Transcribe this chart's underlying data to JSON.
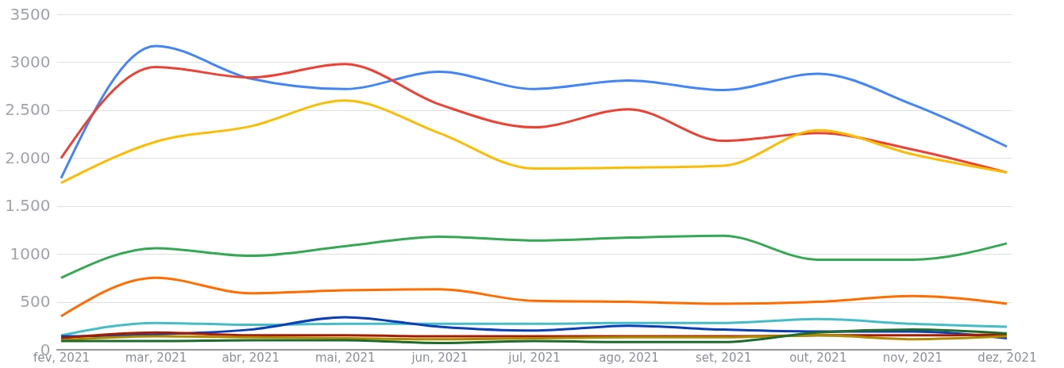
{
  "chart_data": {
    "type": "line",
    "categories": [
      "fev, 2021",
      "mar, 2021",
      "abr, 2021",
      "mai, 2021",
      "jun, 2021",
      "jul, 2021",
      "ago, 2021",
      "set, 2021",
      "out, 2021",
      "nov, 2021",
      "dez, 2021"
    ],
    "ylim": [
      0,
      3500
    ],
    "yticks": [
      0,
      500,
      1000,
      {
        "value": 1500,
        "label": "1.500"
      },
      {
        "value": 2000,
        "label": "2.000"
      },
      {
        "value": 2500,
        "label": "2.500"
      },
      3000,
      3500
    ],
    "grid": "y",
    "legend": false,
    "marker": "none",
    "line_style": "solid",
    "series": [
      {
        "color": "#4285f4",
        "values": [
          1790,
          3170,
          2830,
          2720,
          2900,
          2720,
          2810,
          2710,
          2880,
          2560,
          2120
        ]
      },
      {
        "color": "#ea4335",
        "values": [
          2000,
          2950,
          2840,
          2980,
          2560,
          2320,
          2510,
          2180,
          2260,
          2090,
          1850
        ]
      },
      {
        "color": "#fbbc04",
        "values": [
          1740,
          2170,
          2330,
          2600,
          2260,
          1890,
          1900,
          1920,
          2290,
          2040,
          1850
        ]
      },
      {
        "color": "#34a853",
        "values": [
          750,
          1060,
          980,
          1080,
          1180,
          1140,
          1170,
          1190,
          940,
          940,
          1110
        ]
      },
      {
        "color": "#ff6d01",
        "values": [
          350,
          750,
          590,
          620,
          630,
          510,
          500,
          480,
          500,
          560,
          480
        ]
      },
      {
        "color": "#46bdc6",
        "values": [
          150,
          280,
          260,
          270,
          270,
          270,
          280,
          280,
          320,
          270,
          240
        ]
      },
      {
        "color": "#0b3fb5",
        "values": [
          140,
          160,
          210,
          340,
          240,
          200,
          250,
          210,
          190,
          190,
          120
        ]
      },
      {
        "color": "#a61c00",
        "values": [
          120,
          180,
          150,
          150,
          140,
          140,
          140,
          140,
          150,
          150,
          160
        ]
      },
      {
        "color": "#b08a00",
        "values": [
          100,
          140,
          130,
          120,
          110,
          120,
          130,
          130,
          150,
          110,
          140
        ]
      },
      {
        "color": "#1e6b2e",
        "values": [
          90,
          90,
          100,
          100,
          70,
          90,
          80,
          80,
          180,
          210,
          170
        ]
      }
    ]
  }
}
